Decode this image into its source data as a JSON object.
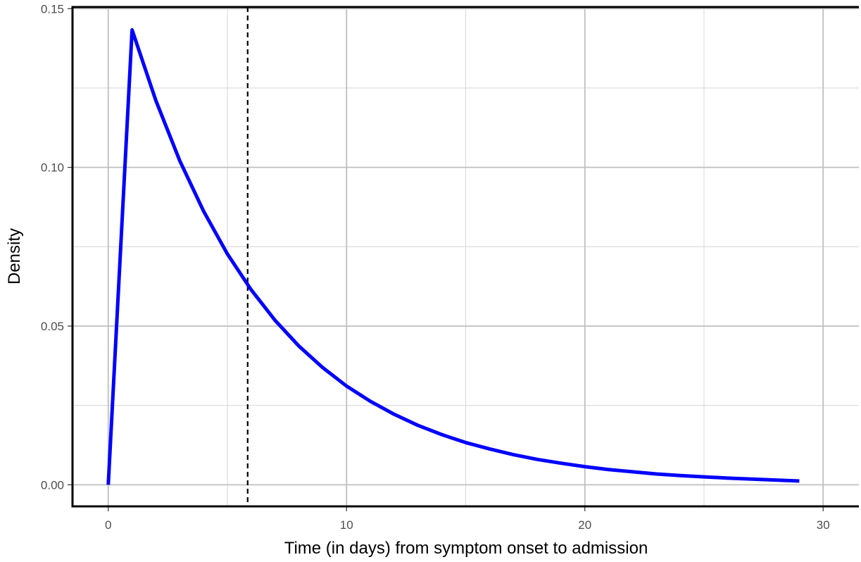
{
  "chart_data": {
    "type": "line",
    "title": "",
    "xlabel": "Time (in days) from symptom onset to admission",
    "ylabel": "Density",
    "xlim": [
      -1.5,
      31.5
    ],
    "ylim": [
      -0.0068,
      0.1505
    ],
    "x_ticks": [
      0,
      10,
      20,
      30
    ],
    "x_tick_labels": [
      "0",
      "10",
      "20",
      "30"
    ],
    "x_minor": [
      5,
      15,
      25
    ],
    "y_ticks": [
      0.0,
      0.05,
      0.1,
      0.15
    ],
    "y_tick_labels": [
      "0.00",
      "0.05",
      "0.10",
      "0.15"
    ],
    "y_minor": [
      0.025,
      0.075,
      0.125
    ],
    "grid": true,
    "series": [
      {
        "color": "#0000ff",
        "x": [
          0,
          1,
          2,
          3,
          4,
          5,
          6,
          7,
          8,
          9,
          10,
          11,
          12,
          13,
          14,
          15,
          16,
          17,
          18,
          19,
          20,
          21,
          22,
          23,
          24,
          25,
          26,
          27,
          28,
          29
        ],
        "y": [
          0.0,
          0.1433,
          0.121,
          0.1021,
          0.0862,
          0.0727,
          0.0614,
          0.0518,
          0.0437,
          0.0369,
          0.0311,
          0.0263,
          0.0222,
          0.0187,
          0.0158,
          0.0133,
          0.0113,
          0.0095,
          0.008,
          0.0068,
          0.0057,
          0.0048,
          0.0041,
          0.0034,
          0.0029,
          0.0025,
          0.0021,
          0.0018,
          0.0015,
          0.0012
        ]
      }
    ],
    "vline": {
      "x": 5.85,
      "style": "dashed",
      "color": "#000000"
    }
  }
}
